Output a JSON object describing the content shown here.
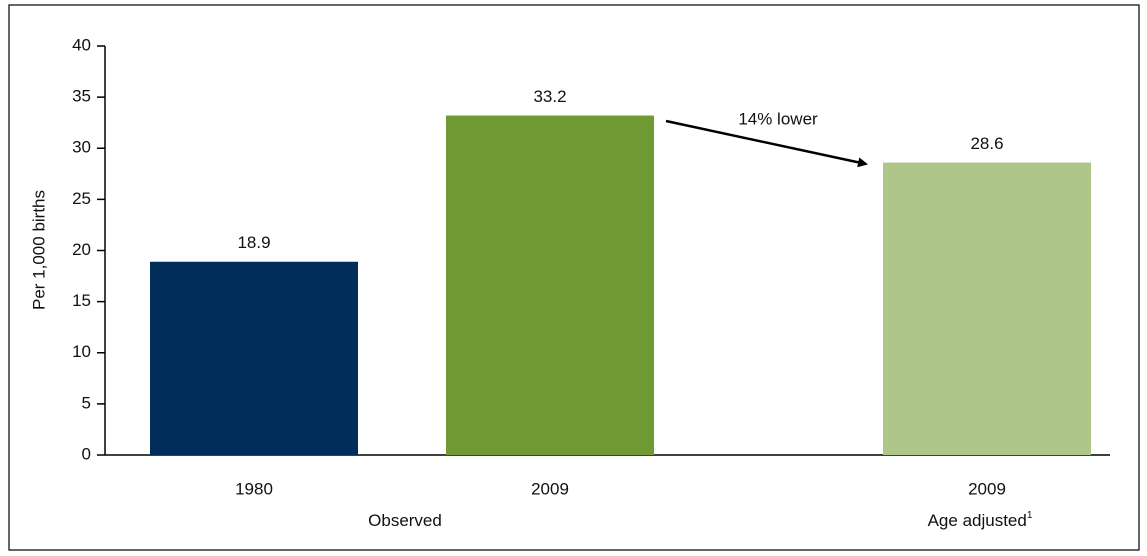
{
  "chart_data": {
    "type": "bar",
    "y_label": "Per 1,000 births",
    "categories": [
      "1980",
      "2009",
      "2009"
    ],
    "values": [
      18.9,
      33.2,
      28.6
    ],
    "colors": [
      "#002d5a",
      "#6f9a34",
      "#aec68a"
    ],
    "groups": [
      {
        "name": "Observed"
      },
      {
        "name": "Age adjusted",
        "superscript": "1"
      }
    ],
    "annotation": "14% lower",
    "ylim": [
      0,
      40
    ],
    "yticks": [
      0,
      5,
      10,
      15,
      20,
      25,
      30,
      35,
      40
    ],
    "grid": false
  }
}
